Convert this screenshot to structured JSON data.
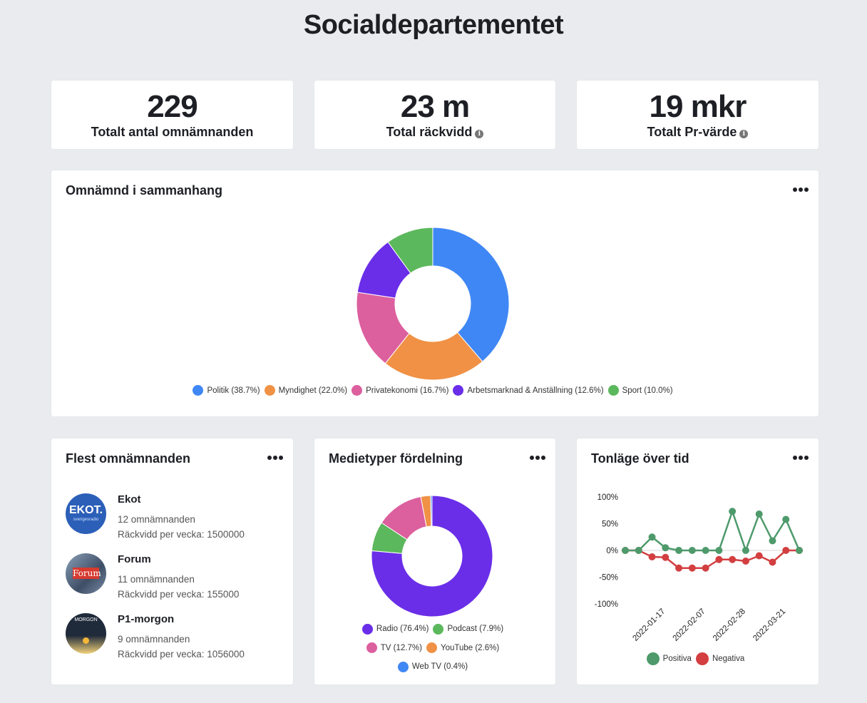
{
  "page": {
    "title": "Socialdepartementet"
  },
  "kpis": [
    {
      "value": "229",
      "label": "Totalt antal omnämnanden",
      "info": false
    },
    {
      "value": "23 m",
      "label": "Total räckvidd",
      "info": true
    },
    {
      "value": "19 mkr",
      "label": "Totalt Pr-värde",
      "info": true
    }
  ],
  "context_card": {
    "title": "Omnämnd i sammanhang"
  },
  "top_card": {
    "title": "Flest omnämnanden",
    "outlets": [
      {
        "name": "Ekot",
        "mentions": "12 omnämnanden",
        "reach": "Räckvidd per vecka: 1500000",
        "logo_text": "EKOT.",
        "logo_sub": "sverigesradio"
      },
      {
        "name": "Forum",
        "mentions": "11 omnämnanden",
        "reach": "Räckvidd per vecka: 155000",
        "logo_text": "Forum"
      },
      {
        "name": "P1-morgon",
        "mentions": "9 omnämnanden",
        "reach": "Räckvidd per vecka: 1056000",
        "logo_text": "MORGON"
      }
    ]
  },
  "media_card": {
    "title": "Medietyper fördelning"
  },
  "tone_card": {
    "title": "Tonläge över tid"
  },
  "colors": {
    "blue": "#3f87f5",
    "orange": "#f09145",
    "pink": "#dc5f9e",
    "purple": "#6a2ee8",
    "green": "#5cb85c",
    "tone_pos": "#4e9a6b",
    "tone_neg": "#d33f40"
  },
  "chart_data": [
    {
      "type": "pie",
      "title": "Omnämnd i sammanhang",
      "labels": [
        "Politik",
        "Myndighet",
        "Privatekonomi",
        "Arbetsmarknad & Anställning",
        "Sport"
      ],
      "values": [
        38.7,
        22.0,
        16.7,
        12.6,
        10.0
      ],
      "legend": [
        "Politik (38.7%)",
        "Myndighet (22.0%)",
        "Privatekonomi (16.7%)",
        "Arbetsmarknad & Anställning (12.6%)",
        "Sport (10.0%)"
      ],
      "colors": [
        "#3f87f5",
        "#f09145",
        "#dc5f9e",
        "#6a2ee8",
        "#5cb85c"
      ]
    },
    {
      "type": "pie",
      "title": "Medietyper fördelning",
      "labels": [
        "Radio",
        "Podcast",
        "TV",
        "YouTube",
        "Web TV"
      ],
      "values": [
        76.4,
        7.9,
        12.7,
        2.6,
        0.4
      ],
      "legend": [
        "Radio (76.4%)",
        "Podcast (7.9%)",
        "TV (12.7%)",
        "YouTube (2.6%)",
        "Web TV (0.4%)"
      ],
      "colors": [
        "#6a2ee8",
        "#5cb85c",
        "#dc5f9e",
        "#f09145",
        "#3f87f5"
      ]
    },
    {
      "type": "line",
      "title": "Tonläge över tid",
      "ylim": [
        -100,
        100
      ],
      "yticks": [
        "100%",
        "50%",
        "0%",
        "-50%",
        "-100%"
      ],
      "ytick_values": [
        100,
        50,
        0,
        -50,
        -100
      ],
      "xtick_labels": [
        "2022-01-17",
        "2022-02-07",
        "2022-02-28",
        "2022-03-21"
      ],
      "xtick_index": [
        3,
        6,
        9,
        12
      ],
      "series": [
        {
          "name": "Positiva",
          "color": "#4e9a6b",
          "values": [
            0,
            0,
            25,
            5,
            0,
            0,
            0,
            0,
            73,
            0,
            68,
            18,
            58,
            0
          ]
        },
        {
          "name": "Negativa",
          "color": "#d33f40",
          "values": [
            0,
            0,
            -12,
            -13,
            -33,
            -33,
            -33,
            -17,
            -17,
            -20,
            -10,
            -22,
            0,
            0
          ]
        }
      ]
    }
  ]
}
